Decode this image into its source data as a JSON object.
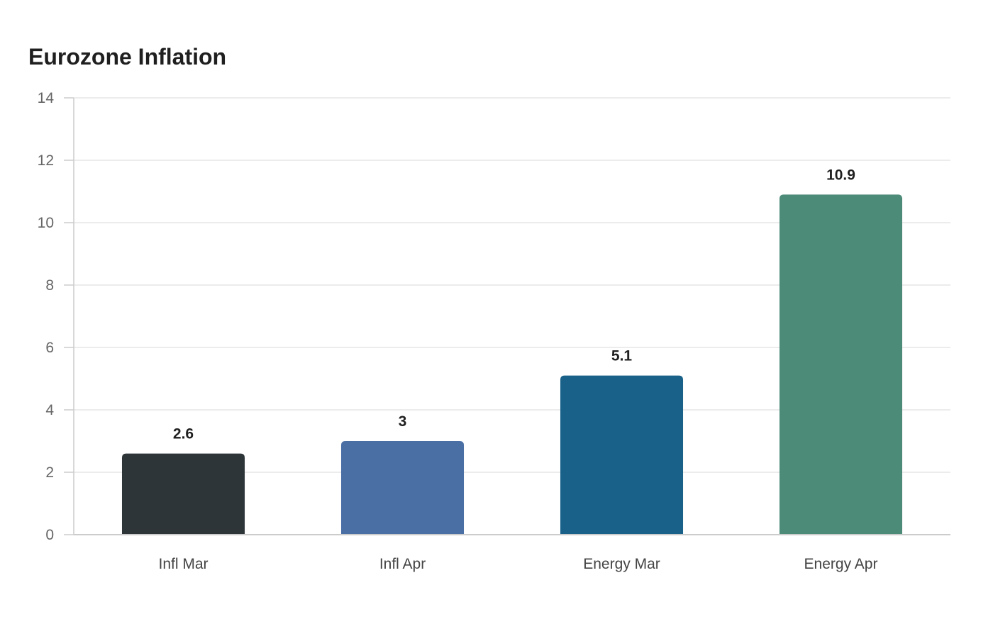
{
  "chart_data": {
    "type": "bar",
    "title": "Eurozone Inflation",
    "xlabel": "",
    "ylabel": "",
    "categories": [
      "Infl Mar",
      "Infl Apr",
      "Energy Mar",
      "Energy Apr"
    ],
    "values": [
      2.6,
      3,
      5.1,
      10.9
    ],
    "data_labels": [
      "2.6",
      "3",
      "5.1",
      "10.9"
    ],
    "bar_colors": [
      "#2e3538",
      "#4a6fa5",
      "#196189",
      "#4d8b79"
    ],
    "ylim": [
      0,
      14
    ],
    "yticks": [
      0,
      2,
      4,
      6,
      8,
      10,
      12,
      14
    ],
    "grid": true,
    "legend": "none"
  }
}
